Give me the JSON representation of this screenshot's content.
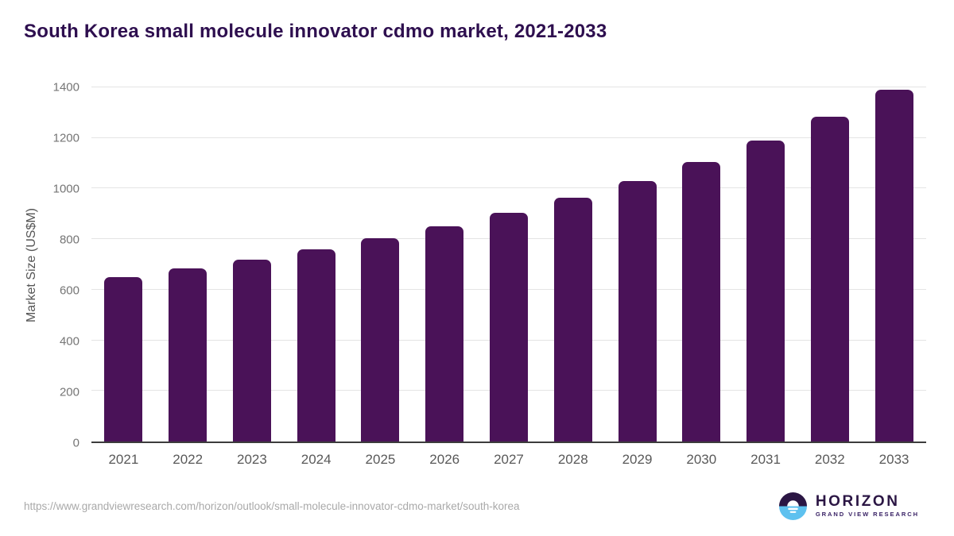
{
  "colors": {
    "bar": "#4a1258",
    "title": "#2e0f4f",
    "logo_name": "#2b1644",
    "logo_tagline": "#3a2366",
    "logo_circle_top": "#2b1644",
    "logo_circle_bottom": "#5ec1ef",
    "gridline": "#e4e4e4",
    "axis_line": "#3c3c3c",
    "tick_text": "#757575",
    "x_label_text": "#595959",
    "url_text": "#a9a9a9"
  },
  "chart_data": {
    "type": "bar",
    "title": "South Korea small molecule innovator cdmo market, 2021-2033",
    "categories": [
      "2021",
      "2022",
      "2023",
      "2024",
      "2025",
      "2026",
      "2027",
      "2028",
      "2029",
      "2030",
      "2031",
      "2032",
      "2033"
    ],
    "values": [
      650,
      685,
      720,
      760,
      805,
      850,
      905,
      965,
      1030,
      1105,
      1190,
      1285,
      1390
    ],
    "xlabel": "",
    "ylabel": "Market Size (US$M)",
    "ylim": [
      0,
      1400
    ],
    "ytick_step": 200,
    "grid": true,
    "legend": "none"
  },
  "footer": {
    "url": "https://www.grandviewresearch.com/horizon/outlook/small-molecule-innovator-cdmo-market/south-korea",
    "logo_name": "HORIZON",
    "logo_tagline": "GRAND VIEW RESEARCH"
  }
}
